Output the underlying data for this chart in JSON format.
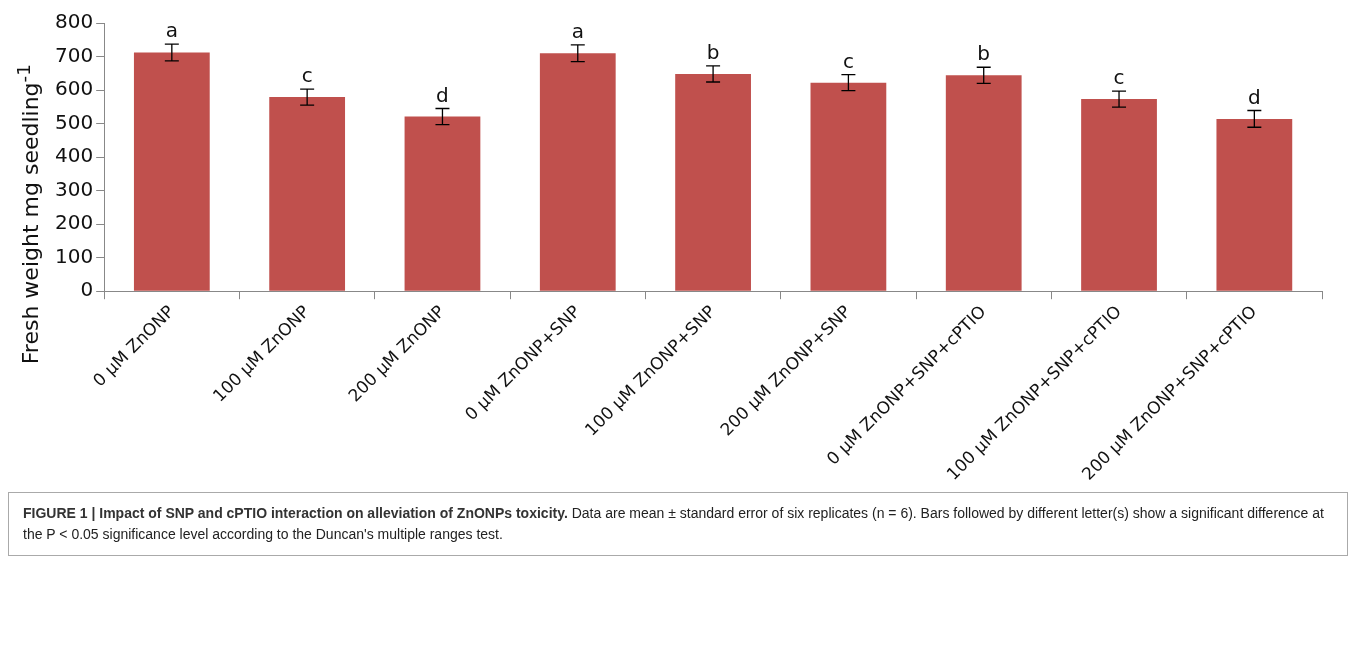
{
  "chart_data": {
    "type": "bar",
    "title": "FIGURE 1 | Impact of SNP and cPTIO interaction on alleviation of ZnONPs toxicity.",
    "ylabel": "Fresh weight mg seedling$^{-1}$",
    "categories": [
      "0 µM ZnONP",
      "100 µM ZnONP",
      "200 µM ZnONP",
      "0 µM ZnONP+SNP",
      "100 µM ZnONP+SNP",
      "200 µM ZnONP+SNP",
      "0 µM ZnONP+SNP+cPTIO",
      "100 µM ZnONP+SNP+cPTIO",
      "200 µM ZnONP+SNP+cPTIO"
    ],
    "values": [
      712,
      579,
      521,
      710,
      648,
      622,
      644,
      573,
      514
    ],
    "errors": [
      25,
      24,
      24,
      25,
      24,
      24,
      24,
      24,
      25
    ],
    "color": "#c0504d",
    "ylim": [
      0,
      800
    ],
    "yticks": [
      0,
      100,
      200,
      300,
      400,
      500,
      600,
      700,
      800
    ],
    "grid": false,
    "annotations": [
      {
        "text": "a",
        "x": "0 µM ZnONP",
        "y": 737
      },
      {
        "text": "c",
        "x": "100 µM ZnONP",
        "y": 603
      },
      {
        "text": "d",
        "x": "200 µM ZnONP",
        "y": 545
      },
      {
        "text": "a",
        "x": "0 µM ZnONP+SNP",
        "y": 735
      },
      {
        "text": "b",
        "x": "100 µM ZnONP+SNP",
        "y": 672
      },
      {
        "text": "c",
        "x": "200 µM ZnONP+SNP",
        "y": 646
      },
      {
        "text": "b",
        "x": "0 µM ZnONP+SNP+cPTIO",
        "y": 668
      },
      {
        "text": "c",
        "x": "100 µM ZnONP+SNP+cPTIO",
        "y": 597
      },
      {
        "text": "d",
        "x": "200 µM ZnONP+SNP+cPTIO",
        "y": 539
      },
      "Data are mean ± standard error of six replicates (n = 6). Bars followed by different letter(s) show a significant difference at the P < 0.05 significance level according to the Duncan's multiple ranges test."
    ]
  }
}
